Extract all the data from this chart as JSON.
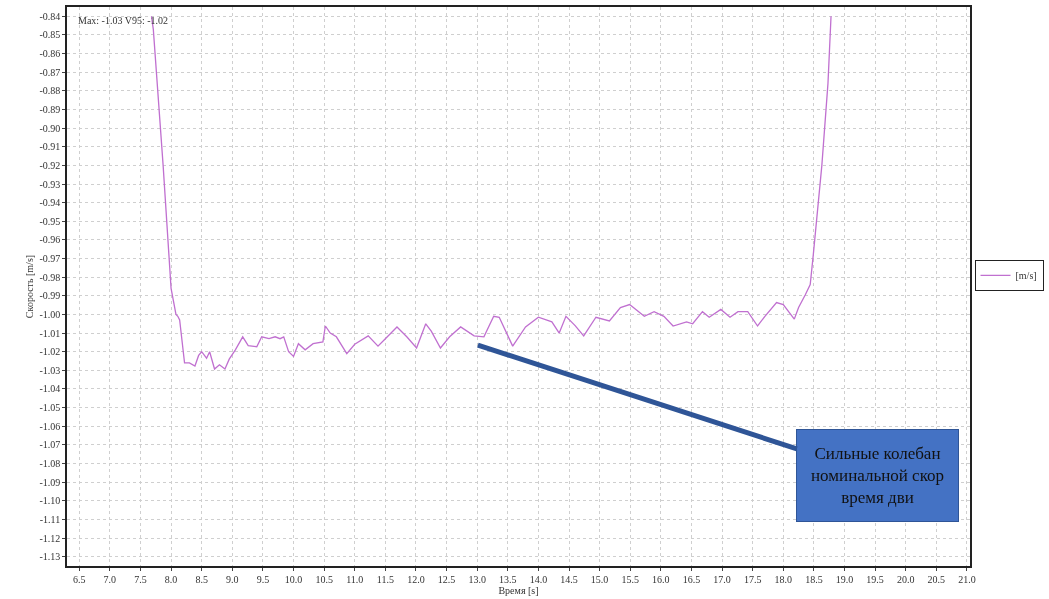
{
  "chart_data": {
    "type": "line",
    "xlabel": "Время [s]",
    "ylabel": "Скорость [m/s]",
    "xlim": [
      6.3,
      21.05
    ],
    "ylim": [
      -1.135,
      -0.835
    ],
    "xticks": [
      6.5,
      {
        "value": 7,
        "label": "7.0"
      },
      7.5,
      {
        "value": 8,
        "label": "8.0"
      },
      8.5,
      {
        "value": 9,
        "label": "9.0"
      },
      9.5,
      {
        "value": 10,
        "label": "10.0"
      },
      10.5,
      {
        "value": 11,
        "label": "11.0"
      },
      11.5,
      {
        "value": 12,
        "label": "12.0"
      },
      12.5,
      {
        "value": 13,
        "label": "13.0"
      },
      13.5,
      {
        "value": 14,
        "label": "14.0"
      },
      14.5,
      {
        "value": 15,
        "label": "15.0"
      },
      15.5,
      {
        "value": 16,
        "label": "16.0"
      },
      16.5,
      {
        "value": 17,
        "label": "17.0"
      },
      17.5,
      {
        "value": 18,
        "label": "18.0"
      },
      18.5,
      {
        "value": 19,
        "label": "19.0"
      },
      19.5,
      {
        "value": 20,
        "label": "20.0"
      },
      20.5,
      {
        "value": 21,
        "label": "21.0"
      }
    ],
    "yticks": [
      -0.84,
      -0.85,
      -0.86,
      -0.87,
      -0.88,
      -0.89,
      {
        "value": -0.9,
        "label": "-0.90"
      },
      -0.91,
      -0.92,
      -0.93,
      -0.94,
      -0.95,
      -0.96,
      -0.97,
      -0.98,
      -0.99,
      {
        "value": -1,
        "label": "-1.00"
      },
      -1.01,
      -1.02,
      -1.03,
      -1.04,
      -1.05,
      -1.06,
      -1.07,
      -1.08,
      -1.09,
      {
        "value": -1.1,
        "label": "-1.10"
      },
      -1.11,
      -1.12,
      -1.13
    ],
    "grid": true,
    "legend": "right",
    "marker": "none",
    "line_style": "solid",
    "series": [
      {
        "name": "[m/s]",
        "color": "#c070d0",
        "x": [
          7.68,
          7.71,
          7.87,
          8.0,
          8.08,
          8.11,
          8.14,
          8.22,
          8.3,
          8.39,
          8.45,
          8.5,
          8.58,
          8.63,
          8.71,
          8.79,
          8.88,
          8.95,
          9.05,
          9.17,
          9.26,
          9.4,
          9.48,
          9.6,
          9.7,
          9.78,
          9.84,
          9.92,
          10.0,
          10.08,
          10.19,
          10.32,
          10.48,
          10.52,
          10.6,
          10.7,
          10.87,
          11.0,
          11.22,
          11.38,
          11.5,
          11.69,
          11.85,
          12.01,
          12.16,
          12.25,
          12.4,
          12.55,
          12.73,
          12.95,
          13.11,
          13.27,
          13.36,
          13.58,
          13.79,
          14.0,
          14.22,
          14.34,
          14.45,
          14.6,
          14.74,
          14.94,
          15.16,
          15.34,
          15.49,
          15.73,
          15.89,
          16.05,
          16.2,
          16.42,
          16.52,
          16.68,
          16.79,
          16.98,
          17.13,
          17.26,
          17.42,
          17.58,
          17.7,
          17.89,
          18.0,
          18.18,
          18.25,
          18.36,
          18.44,
          18.49,
          18.63,
          18.73,
          18.78
        ],
        "values": [
          -0.84,
          -0.847,
          -0.92,
          -0.986,
          -1.0,
          -1.001,
          -1.003,
          -1.026,
          -1.026,
          -1.0277,
          -1.022,
          -1.02,
          -1.0235,
          -1.02,
          -1.0293,
          -1.027,
          -1.0293,
          -1.024,
          -1.019,
          -1.012,
          -1.0167,
          -1.0173,
          -1.012,
          -1.013,
          -1.012,
          -1.013,
          -1.012,
          -1.02,
          -1.0225,
          -1.0157,
          -1.019,
          -1.0157,
          -1.0147,
          -1.0062,
          -1.01,
          -1.012,
          -1.021,
          -1.016,
          -1.0115,
          -1.017,
          -1.013,
          -1.0067,
          -1.012,
          -1.018,
          -1.005,
          -1.009,
          -1.018,
          -1.012,
          -1.0067,
          -1.0115,
          -1.012,
          -1.001,
          -1.0015,
          -1.017,
          -1.0067,
          -1.0015,
          -1.004,
          -1.01,
          -1.001,
          -1.006,
          -1.0115,
          -1.0015,
          -1.0035,
          -0.9963,
          -0.9947,
          -1.001,
          -0.9985,
          -1.001,
          -1.0062,
          -1.004,
          -1.005,
          -0.9985,
          -1.0015,
          -0.9973,
          -1.0015,
          -0.9985,
          -0.9985,
          -1.0062,
          -1.001,
          -0.9936,
          -0.9947,
          -1.0025,
          -0.9963,
          -0.9894,
          -0.984,
          -0.968,
          -0.92,
          -0.876,
          -0.84
        ]
      }
    ],
    "annotations": [
      "Max: -1.03 V95: -1.02",
      "Сильные колебан\nноминальной скор\nвремя дви"
    ]
  }
}
